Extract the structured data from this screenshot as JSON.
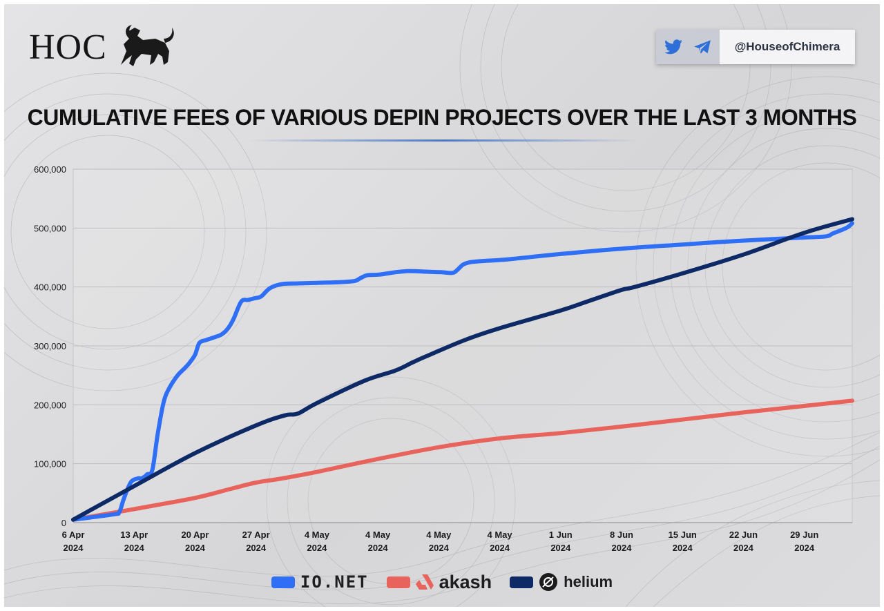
{
  "brand": {
    "logo_text": "HOC",
    "social_handle": "@HouseofChimera"
  },
  "legend": [
    {
      "name": "IO.NET",
      "color": "#2f6ff5"
    },
    {
      "name": "akash",
      "color": "#e8635b"
    },
    {
      "name": "helium",
      "color": "#0d2a66"
    }
  ],
  "chart_data": {
    "type": "line",
    "title": "CUMULATIVE FEES OF VARIOUS DEPIN PROJECTS OVER THE LAST 3 MONTHS",
    "xlabel": "",
    "ylabel": "",
    "ylim": [
      0,
      600000
    ],
    "grid": true,
    "y_ticks": [
      0,
      100000,
      200000,
      300000,
      400000,
      500000,
      600000
    ],
    "y_tick_labels": [
      "0",
      "100,000",
      "200,000",
      "300,000",
      "400,000",
      "500,000",
      "600,000"
    ],
    "x_ticks": [
      {
        "day": 0,
        "line1": "6 Apr",
        "line2": "2024"
      },
      {
        "day": 7,
        "line1": "13 Apr",
        "line2": "2024"
      },
      {
        "day": 14,
        "line1": "20 Apr",
        "line2": "2024"
      },
      {
        "day": 21,
        "line1": "27 Apr",
        "line2": "2024"
      },
      {
        "day": 28,
        "line1": "4 May",
        "line2": "2024"
      },
      {
        "day": 35,
        "line1": "4 May",
        "line2": "2024"
      },
      {
        "day": 42,
        "line1": "4 May",
        "line2": "2024"
      },
      {
        "day": 49,
        "line1": "4 May",
        "line2": "2024"
      },
      {
        "day": 56,
        "line1": "1 Jun",
        "line2": "2024"
      },
      {
        "day": 63,
        "line1": "8 Jun",
        "line2": "2024"
      },
      {
        "day": 70,
        "line1": "15 Jun",
        "line2": "2024"
      },
      {
        "day": 77,
        "line1": "22 Jun",
        "line2": "2024"
      },
      {
        "day": 84,
        "line1": "29 Jun",
        "line2": "2024"
      }
    ],
    "x_range_days": [
      0,
      89.5
    ],
    "series": [
      {
        "name": "IO.NET",
        "color": "#2f6ff5",
        "x": [
          0,
          4.6,
          5.3,
          5.8,
          6.6,
          7.4,
          7.8,
          8.2,
          8.5,
          9.1,
          9.7,
          10.4,
          11.1,
          12.0,
          12.8,
          13.4,
          14.0,
          14.5,
          15.3,
          16.3,
          17.1,
          17.8,
          18.4,
          19.3,
          20.1,
          20.9,
          21.6,
          22.6,
          24.0,
          25.8,
          28.0,
          30.5,
          32.3,
          33.0,
          33.8,
          35.2,
          37.0,
          38.6,
          40.5,
          42.3,
          43.6,
          44.2,
          44.8,
          45.6,
          47.0,
          50.0,
          56.0,
          63.0,
          70.0,
          75.0,
          80.0,
          84.0,
          86.5,
          87.3,
          88.8,
          89.5
        ],
        "y": [
          5000,
          14000,
          18000,
          40000,
          68000,
          75000,
          75000,
          78000,
          82000,
          90000,
          150000,
          205000,
          230000,
          250000,
          262000,
          272000,
          285000,
          305000,
          310000,
          315000,
          320000,
          330000,
          345000,
          375000,
          378000,
          381000,
          384000,
          398000,
          405000,
          406000,
          407000,
          408000,
          410000,
          415000,
          420000,
          421000,
          425000,
          427000,
          426000,
          425000,
          424000,
          430000,
          438000,
          442000,
          444000,
          447000,
          456000,
          465000,
          472000,
          477000,
          481000,
          484000,
          486000,
          491000,
          500000,
          508000
        ]
      },
      {
        "name": "akash",
        "color": "#e8635b",
        "x": [
          0,
          7,
          14,
          18,
          21,
          24,
          28,
          35,
          42,
          49,
          56,
          63,
          70,
          77,
          84,
          89.5
        ],
        "y": [
          5000,
          23000,
          42000,
          57000,
          68000,
          75000,
          86000,
          108000,
          128000,
          143000,
          152000,
          163000,
          175000,
          187000,
          198000,
          207000
        ]
      },
      {
        "name": "helium",
        "color": "#0d2a66",
        "x": [
          0,
          7,
          14,
          21,
          24.3,
          25.8,
          28,
          33.5,
          37,
          39,
          40.5,
          45,
          49,
          56,
          59,
          63,
          64.5,
          70,
          77,
          84,
          89.5
        ],
        "y": [
          5000,
          62000,
          118000,
          165000,
          182000,
          185000,
          203000,
          241000,
          258000,
          272000,
          282000,
          310000,
          330000,
          360000,
          375000,
          395000,
          400000,
          423000,
          455000,
          492000,
          515000
        ]
      }
    ]
  }
}
